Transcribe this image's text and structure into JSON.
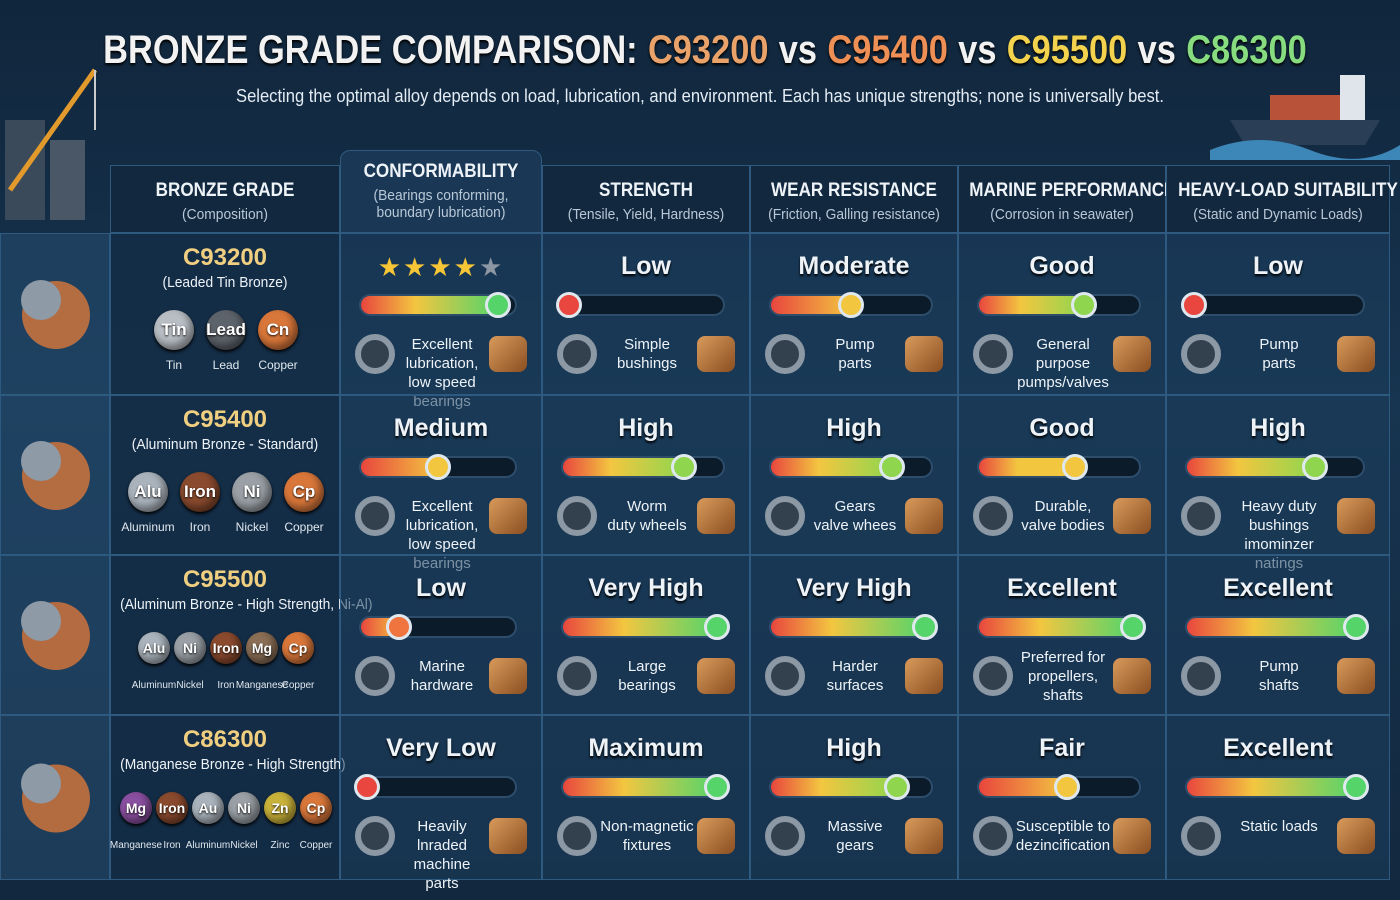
{
  "header": {
    "title": [
      {
        "text": "BRONZE GRADE COMPARISON:",
        "color": "#f2f2f2"
      },
      {
        "text": "C93200",
        "color": "#e9a36a"
      },
      {
        "text": "vs",
        "color": "#f2f2f2"
      },
      {
        "text": "C95400",
        "color": "#ee8f55"
      },
      {
        "text": "vs",
        "color": "#f2f2f2"
      },
      {
        "text": "C95500",
        "color": "#f3d34d"
      },
      {
        "text": "vs",
        "color": "#f2f2f2"
      },
      {
        "text": "C86300",
        "color": "#86dc7e"
      }
    ],
    "subtitle": "Selecting the optimal alloy depends on load, lubrication, and environment. Each has unique strengths; none is universally best."
  },
  "columns": [
    {
      "title": "BRONZE GRADE",
      "subtitle": "(Composition)"
    },
    {
      "title": "CONFORMABILITY",
      "subtitle": "(Bearings conforming,\nboundary lubrication)"
    },
    {
      "title": "STRENGTH",
      "subtitle": "(Tensile, Yield, Hardness)"
    },
    {
      "title": "WEAR RESISTANCE",
      "subtitle": "(Friction, Galling resistance)"
    },
    {
      "title": "MARINE PERFORMANCE",
      "subtitle": "(Corrosion in seawater)"
    },
    {
      "title": "HEAVY-LOAD SUITABILITY",
      "subtitle": "(Static and Dynamic Loads)"
    }
  ],
  "rows": [
    {
      "grade": "C93200",
      "composition": "(Leaded Tin Bronze)",
      "elements": [
        {
          "symbol": "Tin",
          "name": "Tin",
          "color": "#b9bec4"
        },
        {
          "symbol": "Lead",
          "name": "Lead",
          "color": "#5d636b"
        },
        {
          "symbol": "Cn",
          "name": "Copper",
          "color": "#d9773a"
        }
      ],
      "cells": [
        {
          "stars": {
            "filled": 4,
            "total": 5
          },
          "level": 88,
          "uses": "Excellent lubrication,\nlow speed bearings"
        },
        {
          "rating": "Low",
          "level": 5,
          "uses": "Simple\nbushings"
        },
        {
          "rating": "Moderate",
          "level": 50,
          "uses": "Pump\nparts"
        },
        {
          "rating": "Good",
          "level": 65,
          "uses": "General purpose\npumps/valves"
        },
        {
          "rating": "Low",
          "level": 5,
          "uses": "Pump\nparts"
        }
      ]
    },
    {
      "grade": "C95400",
      "composition": "(Aluminum Bronze - Standard)",
      "elements": [
        {
          "symbol": "Alu",
          "name": "Aluminum",
          "color": "#aab3bc"
        },
        {
          "symbol": "Iron",
          "name": "Iron",
          "color": "#8a4a2e"
        },
        {
          "symbol": "Ni",
          "name": "Nickel",
          "color": "#9aa0a6"
        },
        {
          "symbol": "Cp",
          "name": "Copper",
          "color": "#d9773a"
        }
      ],
      "cells": [
        {
          "rating": "Medium",
          "level": 50,
          "uses": "Excellent lubrication,\nlow speed bearings"
        },
        {
          "rating": "High",
          "level": 75,
          "uses": "Worm\nduty wheels"
        },
        {
          "rating": "High",
          "level": 75,
          "uses": "Gears\nvalve whees"
        },
        {
          "rating": "Good",
          "level": 60,
          "uses": "Durable,\nvalve bodies"
        },
        {
          "rating": "High",
          "level": 72,
          "uses": "Heavy duty bushings\nimominzer natings"
        }
      ]
    },
    {
      "grade": "C95500",
      "composition": "(Aluminum Bronze - High Strength, Ni-Al)",
      "elements": [
        {
          "symbol": "Alu",
          "name": "Aluminum",
          "color": "#aab3bc"
        },
        {
          "symbol": "Ni",
          "name": "Nickel",
          "color": "#9aa0a6"
        },
        {
          "symbol": "Iron",
          "name": "Iron",
          "color": "#8a4a2e"
        },
        {
          "symbol": "Mg",
          "name": "Manganese",
          "color": "#8a6e55"
        },
        {
          "symbol": "Cp",
          "name": "Copper",
          "color": "#d9773a"
        }
      ],
      "cells": [
        {
          "rating": "Low",
          "level": 25,
          "uses": "Marine\nhardware"
        },
        {
          "rating": "Very High",
          "level": 95,
          "uses": "Large\nbearings"
        },
        {
          "rating": "Very High",
          "level": 95,
          "uses": "Harder\nsurfaces"
        },
        {
          "rating": "Excellent",
          "level": 95,
          "uses": "Preferred for\npropellers,\nshafts"
        },
        {
          "rating": "Excellent",
          "level": 95,
          "uses": "Pump\nshafts"
        }
      ]
    },
    {
      "grade": "C86300",
      "composition": "(Manganese Bronze - High Strength)",
      "elements": [
        {
          "symbol": "Mg",
          "name": "Manganese",
          "color": "#8a4fa0"
        },
        {
          "symbol": "Iron",
          "name": "Iron",
          "color": "#8a4a2e"
        },
        {
          "symbol": "Au",
          "name": "Aluminum",
          "color": "#aab3bc"
        },
        {
          "symbol": "Ni",
          "name": "Nickel",
          "color": "#9aa0a6"
        },
        {
          "symbol": "Zn",
          "name": "Zinc",
          "color": "#c9b23a"
        },
        {
          "symbol": "Cp",
          "name": "Copper",
          "color": "#d9773a"
        }
      ],
      "cells": [
        {
          "rating": "Very Low",
          "level": 5,
          "uses": "Heavily lnraded\nmachine parts"
        },
        {
          "rating": "Maximum",
          "level": 95,
          "uses": "Non-magnetic\nfixtures"
        },
        {
          "rating": "High",
          "level": 78,
          "uses": "Massive\ngears"
        },
        {
          "rating": "Fair",
          "level": 55,
          "uses": "Susceptible to\ndezincification"
        },
        {
          "rating": "Excellent",
          "level": 95,
          "uses": "Static loads"
        }
      ]
    }
  ]
}
